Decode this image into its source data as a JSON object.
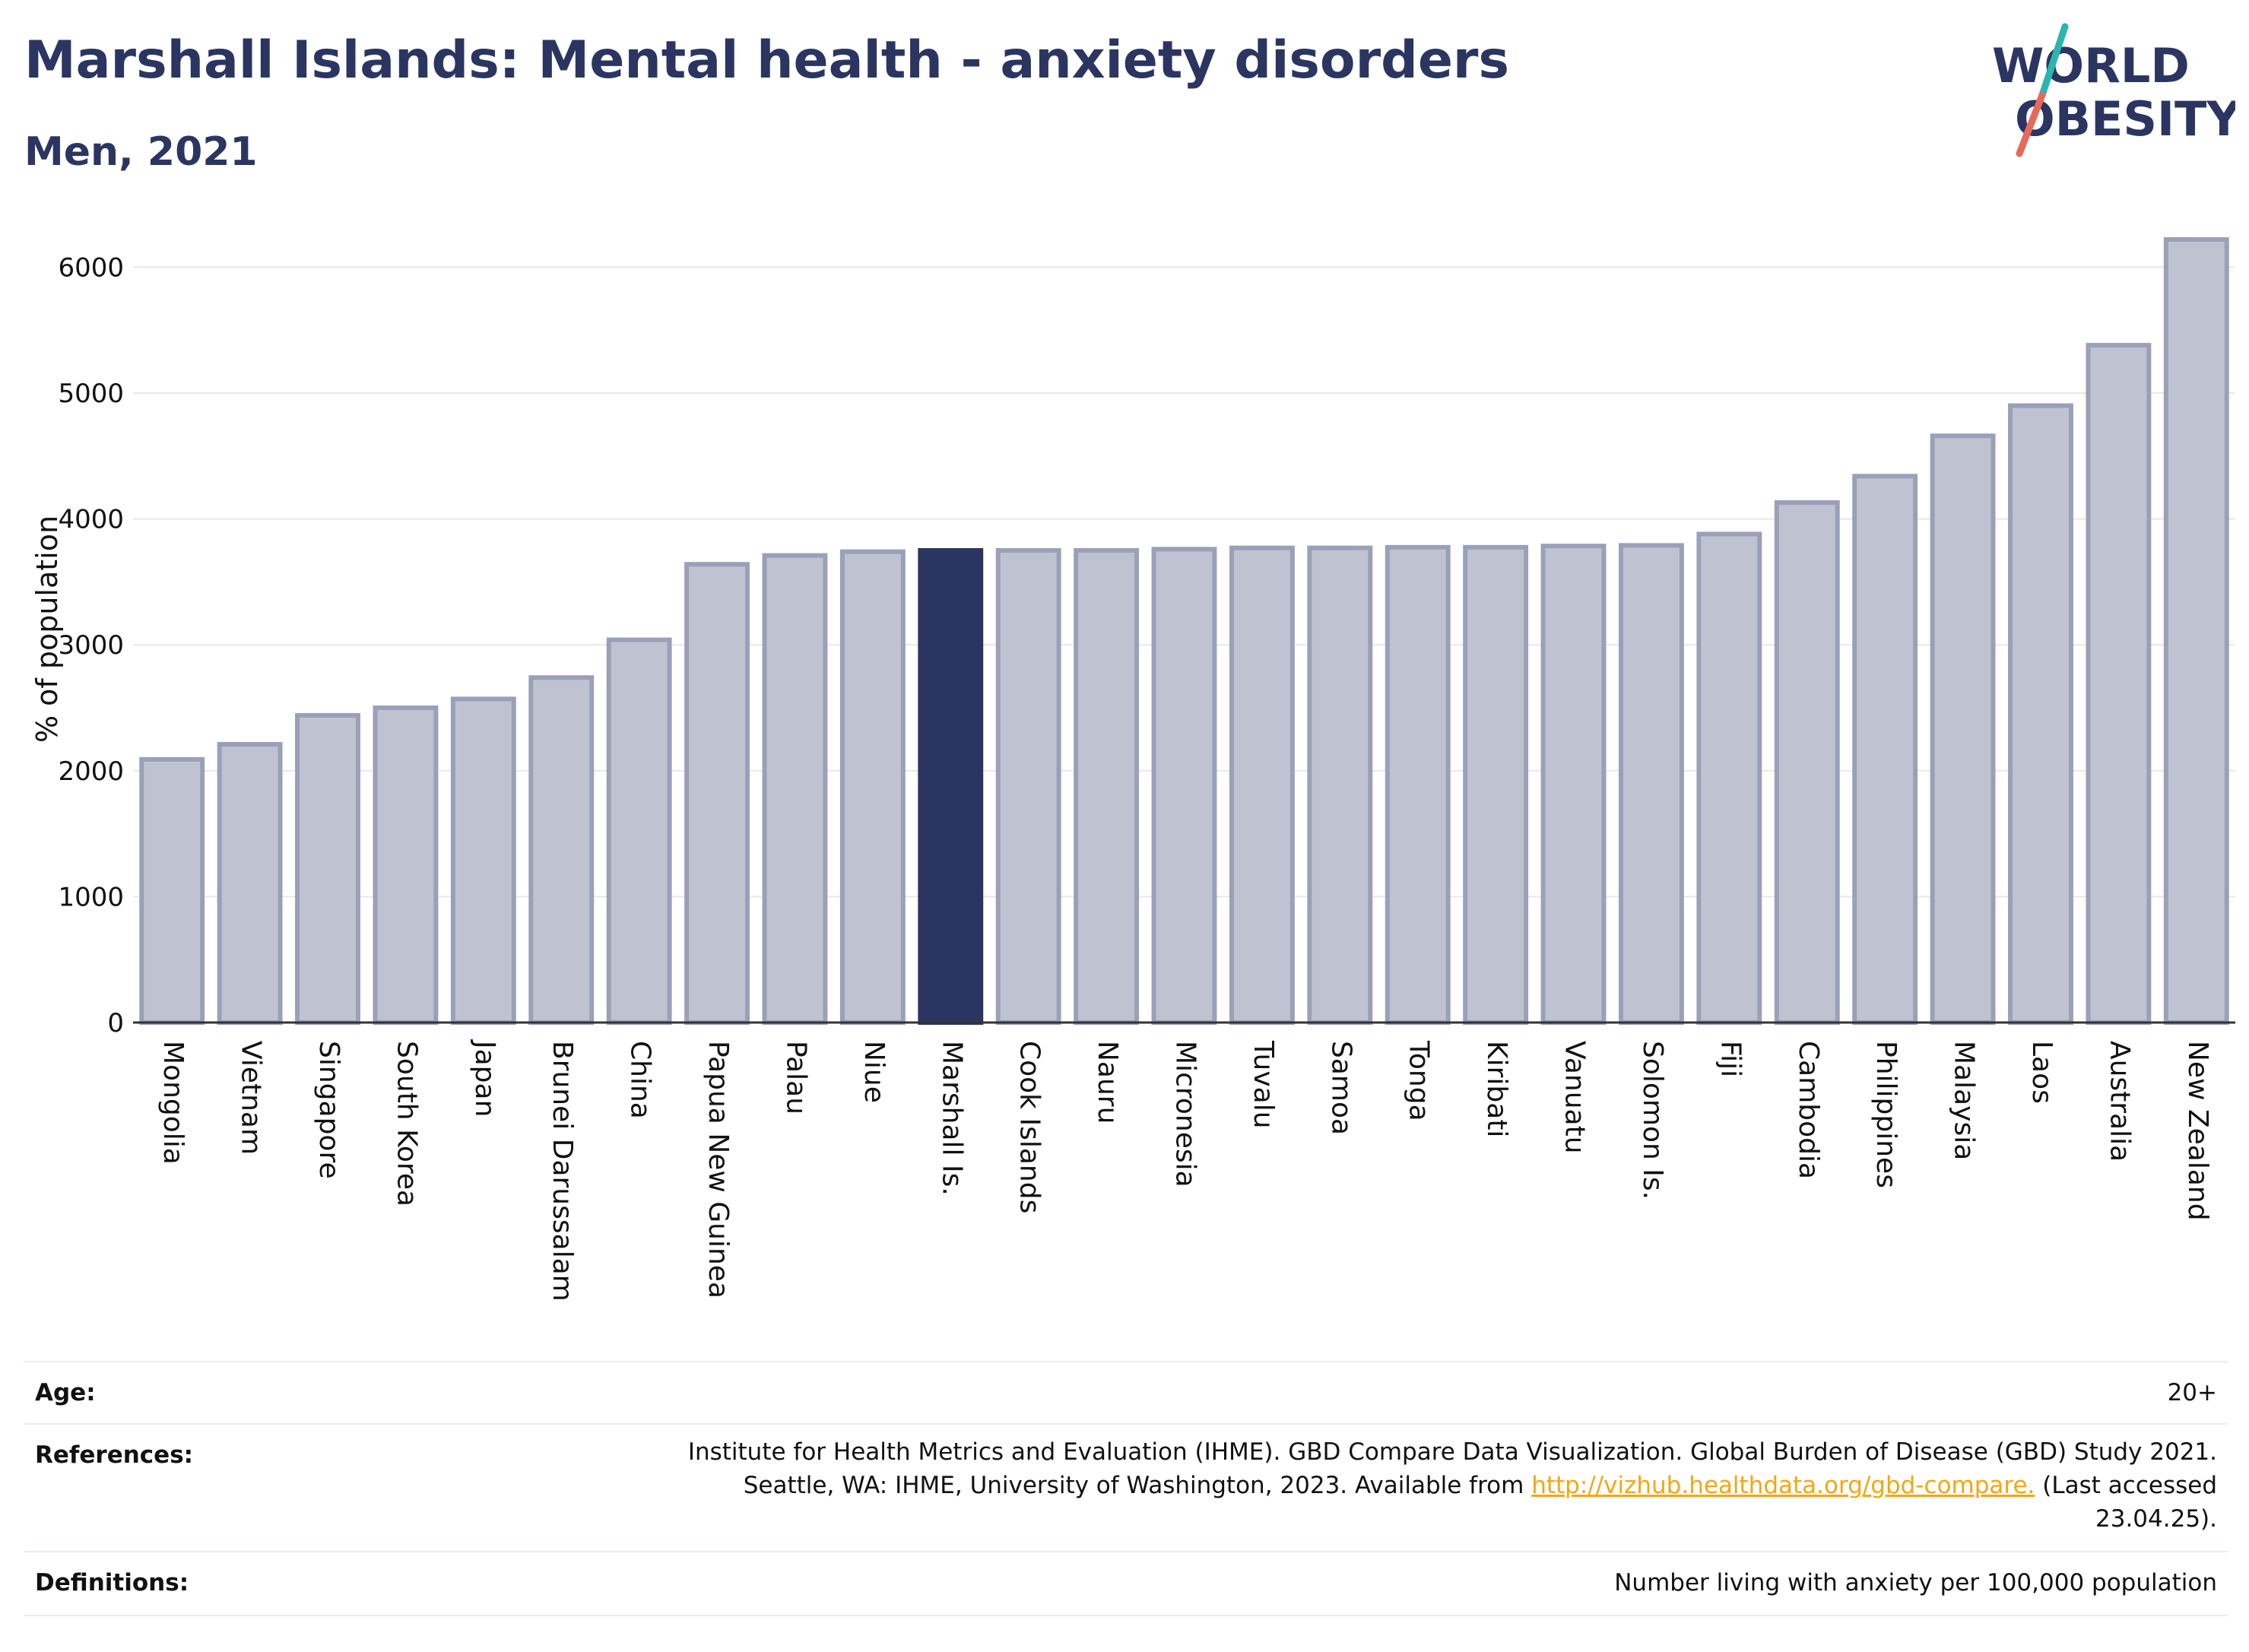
{
  "header": {
    "title": "Marshall Islands: Mental health - anxiety disorders",
    "subtitle": "Men, 2021",
    "logo_line1": "WORLD",
    "logo_line2": "OBESITY"
  },
  "colors": {
    "title": "#2b3561",
    "bar_default": "#bfc3d1",
    "bar_border": "#9aa0b8",
    "bar_highlight": "#2b3561",
    "link": "#f3a712",
    "logo_teal": "#2bb5b0",
    "logo_coral": "#e8685a"
  },
  "chart_data": {
    "type": "bar",
    "ylabel": "% of population",
    "xlabel": "",
    "ylim": [
      0,
      6250
    ],
    "yticks": [
      0,
      1000,
      2000,
      3000,
      4000,
      5000,
      6000
    ],
    "grid": true,
    "highlight": "Marshall Is.",
    "categories": [
      "Mongolia",
      "Vietnam",
      "Singapore",
      "South Korea",
      "Japan",
      "Brunei Darussalam",
      "China",
      "Papua New Guinea",
      "Palau",
      "Niue",
      "Marshall Is.",
      "Cook Islands",
      "Nauru",
      "Micronesia",
      "Tuvalu",
      "Samoa",
      "Tonga",
      "Kiribati",
      "Vanuatu",
      "Solomon Is.",
      "Fiji",
      "Cambodia",
      "Philippines",
      "Malaysia",
      "Laos",
      "Australia",
      "New Zealand"
    ],
    "values": [
      2090,
      2210,
      2440,
      2500,
      2570,
      2740,
      3040,
      3640,
      3710,
      3740,
      3750,
      3750,
      3750,
      3760,
      3770,
      3770,
      3775,
      3775,
      3785,
      3790,
      3880,
      4130,
      4340,
      4660,
      4900,
      5380,
      6220
    ]
  },
  "meta": {
    "age_label": "Age:",
    "age_value": "20+",
    "references_label": "References:",
    "references_line1": "Institute for Health Metrics and Evaluation (IHME). GBD Compare Data Visualization. Global Burden of Disease (GBD) Study 2021.",
    "references_line2_pre": "Seattle, WA: IHME, University of Washington, 2023. Available from ",
    "references_link": "http://vizhub.healthdata.org/gbd-compare.",
    "references_line2_post": " (Last accessed",
    "references_line3": "23.04.25).",
    "definitions_label": "Definitions:",
    "definitions_value": "Number living with anxiety per 100,000 population"
  }
}
